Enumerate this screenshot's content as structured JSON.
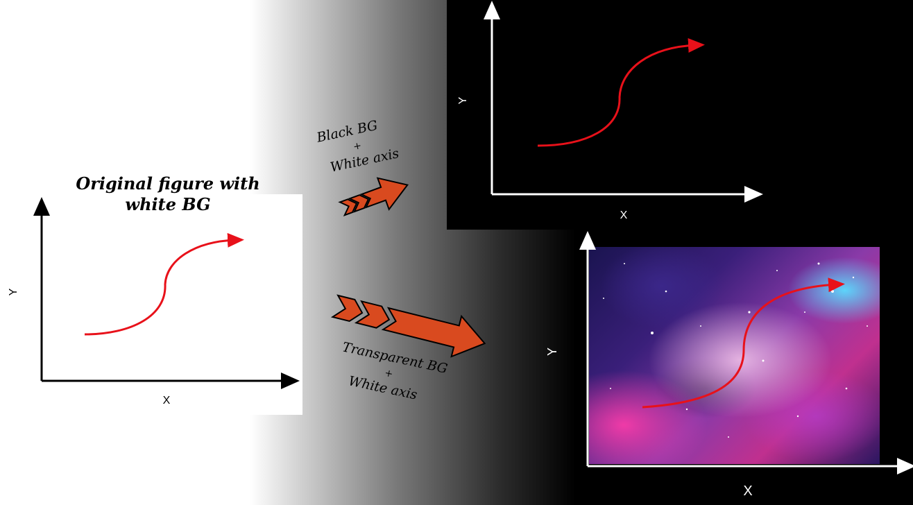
{
  "original": {
    "title_line1": "Original figure with",
    "title_line2": "white BG",
    "x_label": "X",
    "y_label": "Y"
  },
  "black_variant": {
    "caption_line1": "Black BG",
    "caption_plus": "+",
    "caption_line2": "White axis",
    "x_label": "X",
    "y_label": "Y"
  },
  "transparent_variant": {
    "caption_line1": "Transparent BG",
    "caption_plus": "+",
    "caption_line2": "White axis",
    "x_label": "X",
    "y_label": "Y"
  },
  "colors": {
    "curve": "#e8111a",
    "arrow_fill": "#d94a1f",
    "axis_dark": "#000000",
    "axis_light": "#ffffff"
  }
}
